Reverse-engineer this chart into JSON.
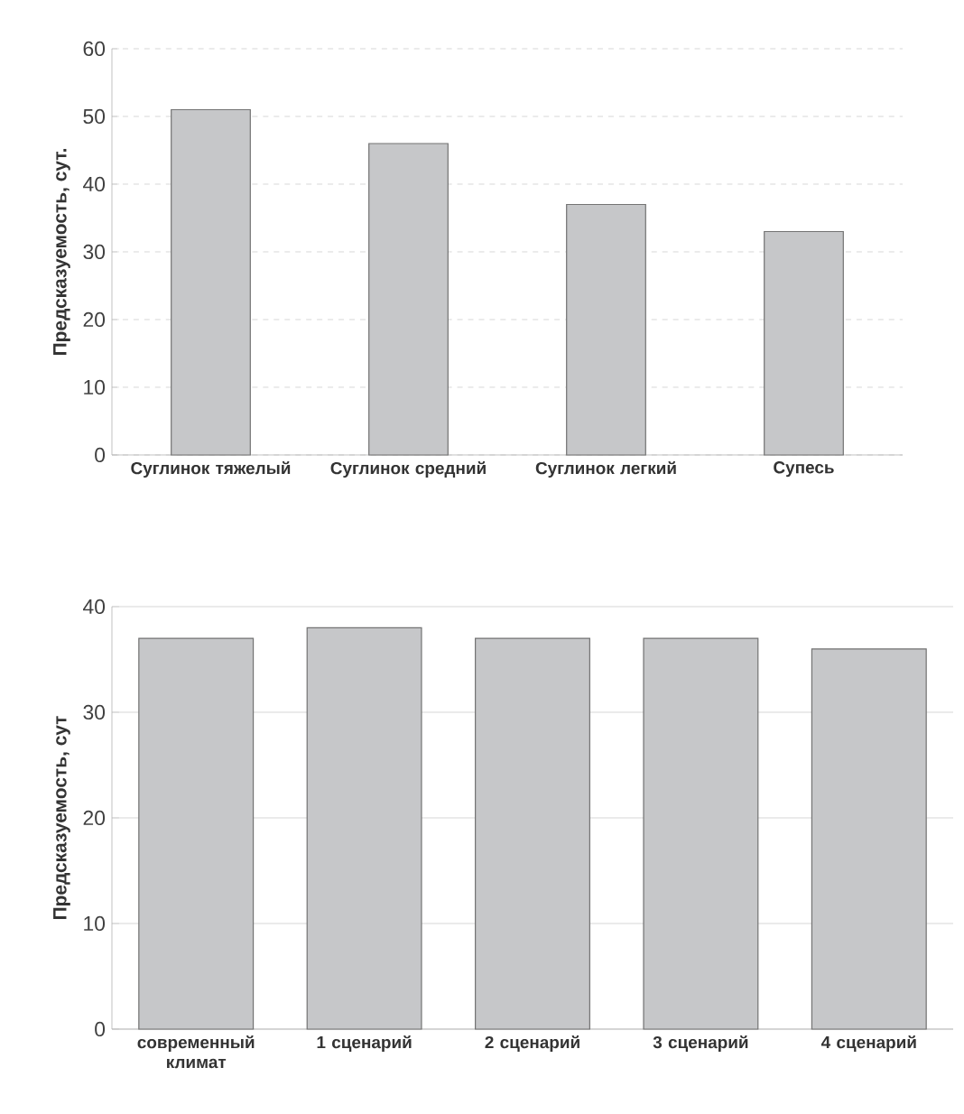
{
  "chart_data": [
    {
      "type": "bar",
      "ylabel": "Предсказуемость, сут.",
      "categories": [
        "Суглинок тяжелый",
        "Суглинок средний",
        "Суглинок легкий",
        "Супесь"
      ],
      "values": [
        51,
        46,
        37,
        33
      ],
      "color": "#c6c7c9",
      "ylim": [
        0,
        60
      ],
      "yticks": [
        0,
        10,
        20,
        30,
        40,
        50,
        60
      ],
      "grid": "y"
    },
    {
      "type": "bar",
      "ylabel": "Предсказуемость, сут",
      "categories": [
        "современный климат",
        "1 сценарий",
        "2 сценарий",
        "3 сценарий",
        "4 сценарий"
      ],
      "values": [
        37,
        38,
        37,
        37,
        36
      ],
      "color": "#c6c7c9",
      "ylim": [
        0,
        40
      ],
      "yticks": [
        0,
        10,
        20,
        30,
        40
      ],
      "grid": "y"
    }
  ]
}
